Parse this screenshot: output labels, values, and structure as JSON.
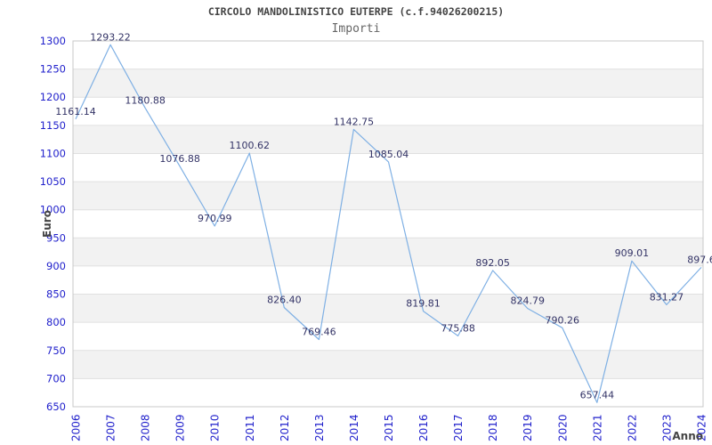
{
  "chart_data": {
    "type": "line",
    "title": "CIRCOLO MANDOLINISTICO EUTERPE (c.f.94026200215)",
    "subtitle": "Importi",
    "xlabel": "Anno",
    "ylabel": "Euro",
    "categories": [
      "2006",
      "2007",
      "2008",
      "2009",
      "2010",
      "2011",
      "2012",
      "2013",
      "2014",
      "2015",
      "2016",
      "2017",
      "2018",
      "2019",
      "2020",
      "2021",
      "2022",
      "2023",
      "2024"
    ],
    "values": [
      1161.14,
      1293.22,
      1180.88,
      1076.88,
      970.99,
      1100.62,
      826.4,
      769.46,
      1142.75,
      1085.04,
      819.81,
      775.88,
      892.05,
      824.79,
      790.26,
      657.44,
      909.01,
      831.27,
      897.6
    ],
    "point_labels": [
      "1161.14",
      "1293.22",
      "1180.88",
      "1076.88",
      "970.99",
      "1100.62",
      "826.40",
      "769.46",
      "1142.75",
      "1085.04",
      "819.81",
      "775.88",
      "892.05",
      "824.79",
      "790.26",
      "657.44",
      "909.01",
      "831.27",
      "897.6"
    ],
    "ylim": [
      650,
      1300
    ],
    "ytick_step": 50,
    "grid": "horizontal-bands",
    "legend": "none",
    "colors": {
      "line": "#7fb0e4",
      "tick_label": "#2222cc",
      "point_label": "#333366",
      "band_gray": "#f2f2f2",
      "gridline": "#e0e0e0",
      "plot_border": "#c8c8c8",
      "title": "#444444",
      "subtitle": "#666666",
      "axis_title": "#444444",
      "background": "#ffffff"
    }
  }
}
